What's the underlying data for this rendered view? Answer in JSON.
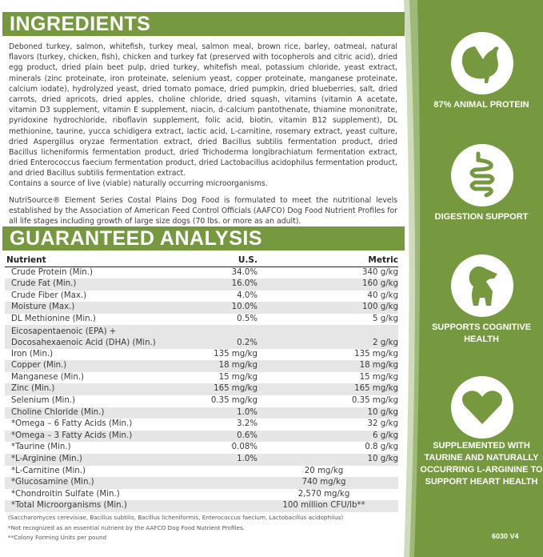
{
  "colors": {
    "brand_green": "#76983f",
    "stripe": "#e6e6e6"
  },
  "ingredients": {
    "title": "INGREDIENTS",
    "text": "Deboned turkey, salmon, whitefish, turkey meal, salmon meal, brown rice, barley, oatmeal, natural flavors (turkey, chicken, fish), chicken and turkey fat (preserved with tocopherols and citric acid), dried egg product, dried plain beet pulp, dried turkey, whitefish meal, potassium chloride, yeast extract, minerals (zinc proteinate, iron proteinate, selenium yeast, copper proteinate, manganese proteinate, calcium iodate), hydrolyzed yeast, dried tomato pomace, dried pumpkin, dried blueberries, salt, dried carrots, dried apricots, dried apples, choline chloride, dried squash, vitamins (vitamin A acetate, vitamin D3 supplement, vitamin E supplement, niacin, d-calcium pantothenate, thiamine mononitrate, pyridoxine hydrochloride, riboflavin supplement, folic acid, biotin, vitamin B12 supplement), DL methionine, taurine, yucca schidigera extract, lactic acid, L-carnitine, rosemary extract, yeast culture, dried Aspergillus oryzae fermentation extract, dried Bacillus subtilis fermentation product, dried Bacillus licheniformis fermentation product, dried Trichoderma longibrachiatum fermentation extract, dried Enterococcus faecium fermentation product, dried Lactobacillus acidophilus fermentation product, and dried Bacillus subtilis fermentation extract.",
    "live": "Contains a source of live (viable) naturally occurring microorganisms.",
    "aafco": "NutriSource® Element Series Costal Plains Dog Food is formulated to meet the nutritional levels established by the Association of American Feed Control Officials (AAFCO) Dog Food Nutrient Profiles for all life stages including growth of large size dogs (70 lbs. or more as an adult)."
  },
  "analysis": {
    "title": "GUARANTEED ANALYSIS",
    "headers": [
      "Nutrient",
      "U.S.",
      "Metric"
    ],
    "rows": [
      [
        "Crude Protein (Min.)",
        "34.0%",
        "340 g/kg"
      ],
      [
        "Crude Fat (Min.)",
        "16.0%",
        "160 g/kg"
      ],
      [
        "Crude Fiber (Max.)",
        "4.0%",
        "40 g/kg"
      ],
      [
        "Moisture (Max.)",
        "10.0%",
        "100 g/kg"
      ],
      [
        "DL Methionine (Min.)",
        "0.5%",
        "5 g/kg"
      ],
      [
        "Eicosapentaenoic (EPA) +",
        "",
        ""
      ],
      [
        "Docosahexaenoic Acid (DHA) (Min.)",
        "0.2%",
        "2 g/kg"
      ],
      [
        "Iron (Min.)",
        "135 mg/kg",
        "135 mg/kg"
      ],
      [
        "Copper (Min.)",
        "18 mg/kg",
        "18 mg/kg"
      ],
      [
        "Manganese (Min.)",
        "15 mg/kg",
        "15 mg/kg"
      ],
      [
        "Zinc (Min.)",
        "165 mg/kg",
        "165 mg/kg"
      ],
      [
        "Selenium (Min.)",
        "0.35 mg/kg",
        "0.35 mg/kg"
      ],
      [
        "Choline Chloride (Min.)",
        "1.0%",
        "10 g/kg"
      ],
      [
        "*Omega – 6 Fatty Acids (Min.)",
        "3.2%",
        "32 g/kg"
      ],
      [
        "*Omega – 3 Fatty Acids (Min.)",
        "0.6%",
        "6 g/kg"
      ],
      [
        "*Taurine (Min.)",
        "0.08%",
        "0.8 g/kg"
      ],
      [
        "*L-Arginine (Min.)",
        "1.0%",
        "10 g/kg"
      ]
    ],
    "combined_rows": [
      [
        "*L-Carnitine (Min.)",
        "20 mg/kg"
      ],
      [
        "*Glucosamine (Min.)",
        "740 mg/kg"
      ],
      [
        "*Chondroitin Sulfate (Min.)",
        "2,570 mg/kg"
      ],
      [
        "*Total Microorganisms (Min.)",
        "100 million CFU/lb**"
      ]
    ],
    "footnotes": [
      "(Saccharomyces cerevisiae, Bacillus subtilis, Bacillus licheniformis, Enterococcus faecium, Lactobacillus acidophilus)",
      "*Not recognized as an essential nutrient by the AAFCO Dog Food Nutrient Profiles.",
      "**Colony Forming Units per pound"
    ]
  },
  "features": [
    {
      "icon": "turkey-icon",
      "label": "87% ANIMAL PROTEIN"
    },
    {
      "icon": "intestine-icon",
      "label": "DIGESTION SUPPORT"
    },
    {
      "icon": "puppy-icon",
      "label": "SUPPORTS COGNITIVE HEALTH"
    },
    {
      "icon": "heart-icon",
      "label": "SUPPLEMENTED WITH TAURINE AND NATURALLY OCCURRING L-ARGININE TO SUPPORT HEART HEALTH"
    }
  ],
  "code": "6030 V4"
}
